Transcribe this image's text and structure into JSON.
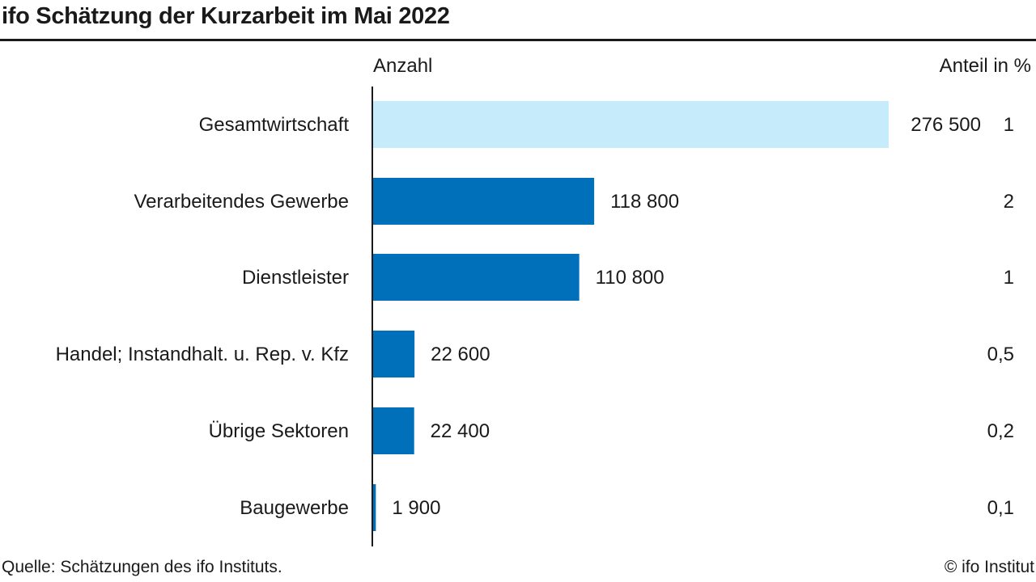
{
  "title": "ifo Schätzung der Kurzarbeit im Mai 2022",
  "columns": {
    "count": "Anzahl",
    "share": "Anteil in %"
  },
  "source": "Quelle: Schätzungen des ifo Instituts.",
  "copyright": "© ifo Institut",
  "colors": {
    "highlight": "#c6ecfb",
    "bar": "#0070ba",
    "axis": "#1a1a1a"
  },
  "chart_data": {
    "type": "bar",
    "orientation": "horizontal",
    "categories": [
      "Gesamtwirtschaft",
      "Verarbeitendes Gewerbe",
      "Dienstleister",
      "Handel; Instandhalt. u. Rep. v. Kfz",
      "Übrige Sektoren",
      "Baugewerbe"
    ],
    "values": [
      276500,
      118800,
      110800,
      22600,
      22400,
      1900
    ],
    "value_labels": [
      "276 500",
      "118 800",
      "110 800",
      "22 600",
      "22 400",
      "1 900"
    ],
    "shares": [
      "1",
      "2",
      "1",
      "0,5",
      "0,2",
      "0,1"
    ],
    "highlight_index": 0,
    "grid": false
  }
}
